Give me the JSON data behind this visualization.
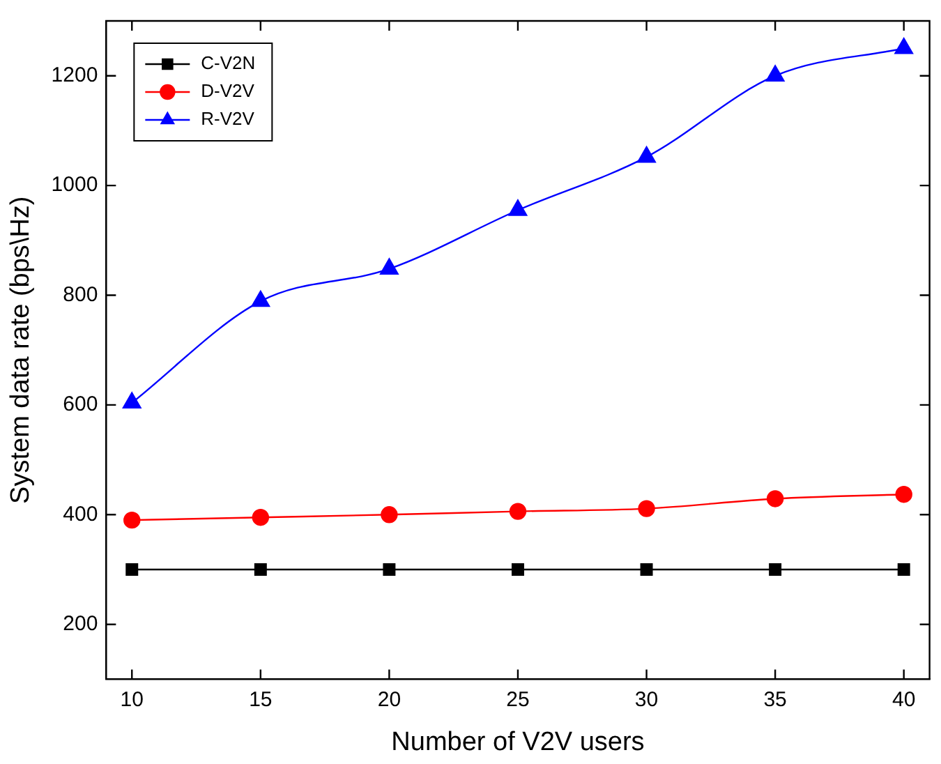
{
  "chart_data": {
    "type": "line",
    "xlabel": "Number of V2V users",
    "ylabel": "System data rate (bps\\Hz)",
    "x": [
      10,
      15,
      20,
      25,
      30,
      35,
      40
    ],
    "series": [
      {
        "name": "C-V2N",
        "color": "#000000",
        "marker": "square",
        "values": [
          300,
          300,
          300,
          300,
          300,
          300,
          300
        ]
      },
      {
        "name": "D-V2V",
        "color": "#ff0000",
        "marker": "circle",
        "values": [
          390,
          395,
          400,
          406,
          411,
          429,
          437
        ]
      },
      {
        "name": "R-V2V",
        "color": "#0000ff",
        "marker": "triangle",
        "values": [
          604,
          789,
          848,
          955,
          1052,
          1200,
          1250
        ]
      }
    ],
    "xlim": [
      9,
      41
    ],
    "xticks": [
      10,
      15,
      20,
      25,
      30,
      35,
      40
    ],
    "ylim": [
      100,
      1300
    ],
    "yticks": [
      200,
      400,
      600,
      800,
      1000,
      1200
    ],
    "grid": false,
    "legend": "top left"
  }
}
